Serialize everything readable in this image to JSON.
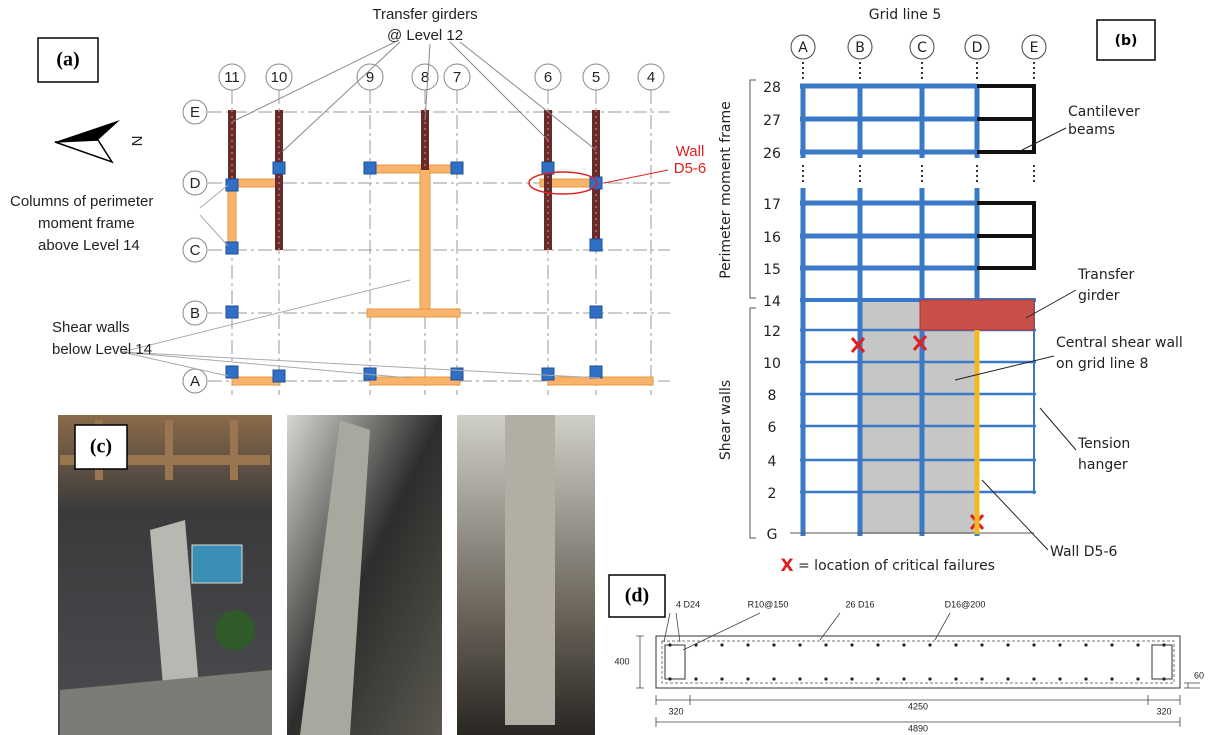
{
  "panel_a": {
    "label": "(a)",
    "girder_note": "Transfer girders",
    "girder_level": "@ Level 12",
    "grid_numbers": [
      "11",
      "10",
      "9",
      "8",
      "7",
      "6",
      "5",
      "4"
    ],
    "grid_letters": [
      "E",
      "D",
      "C",
      "B",
      "A"
    ],
    "north": "N",
    "wall_note": "Wall",
    "wall_name": "D5-6",
    "columns_note": [
      "Columns of perimeter",
      "moment frame",
      "above Level 14"
    ],
    "walls_note": [
      "Shear walls",
      "below Level 14"
    ]
  },
  "panel_b": {
    "label": "(b)",
    "title": "Grid line 5",
    "columns": [
      "A",
      "B",
      "C",
      "D",
      "E"
    ],
    "levels": [
      "28",
      "27",
      "26",
      "17",
      "16",
      "15",
      "14",
      "12",
      "10",
      "8",
      "6",
      "4",
      "2",
      "G"
    ],
    "frame_label": "Perimeter moment frame",
    "walls_label": "Shear walls",
    "cantilever_note": [
      "Cantilever",
      "beams"
    ],
    "transfer_note": [
      "Transfer",
      "girder"
    ],
    "central_note": [
      "Central shear wall",
      "on grid line 8"
    ],
    "hanger_note": [
      "Tension",
      "hanger"
    ],
    "wall_note": "Wall D5-6",
    "legend_symbol": "X",
    "legend_text": "= location of critical failures"
  },
  "panel_c": {
    "label": "(c)"
  },
  "panel_d": {
    "label": "(d)",
    "callouts": [
      "4 D24",
      "R10@150",
      "26 D16",
      "D16@200"
    ],
    "height": "400",
    "cover": "60",
    "end_left": "320",
    "middle": "4250",
    "end_right": "320",
    "total": "4890"
  }
}
